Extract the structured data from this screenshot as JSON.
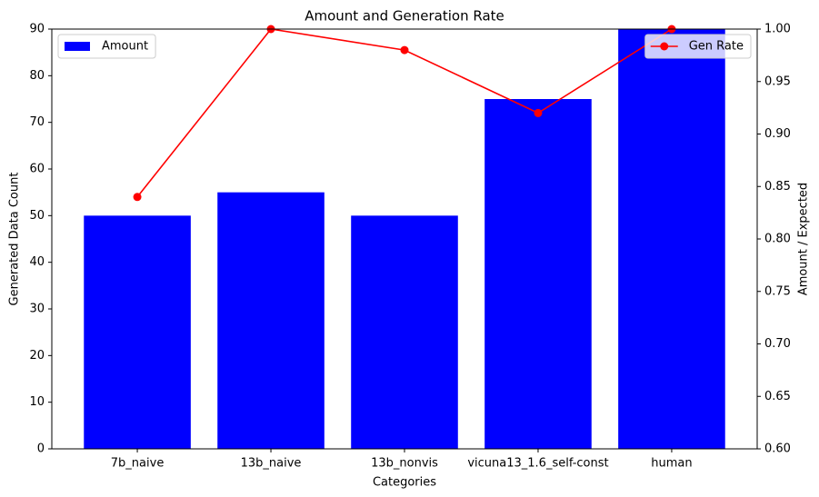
{
  "chart_data": {
    "type": "bar",
    "title": "Amount and Generation Rate",
    "xlabel": "Categories",
    "ylabel": "Generated Data Count",
    "y2label": "Amount / Expected",
    "categories": [
      "7b_naive",
      "13b_naive",
      "13b_nonvis",
      "vicuna13_1.6_self-const",
      "human"
    ],
    "series": [
      {
        "name": "Amount",
        "color": "#0000ff",
        "values": [
          50,
          55,
          50,
          75,
          90
        ],
        "legend_loc": "upper left"
      },
      {
        "name": "Gen Rate",
        "type": "line",
        "axis": "y2",
        "color": "#ff0000",
        "values": [
          0.84,
          1.0,
          0.98,
          0.92,
          1.0
        ],
        "legend_loc": "upper right"
      }
    ],
    "ylim": [
      0,
      90
    ],
    "yticks": [
      0,
      10,
      20,
      30,
      40,
      50,
      60,
      70,
      80,
      90
    ],
    "y2lim": [
      0.6,
      1.0
    ],
    "y2ticks": [
      {
        "value": 0.6,
        "label": "0.60"
      },
      0.65,
      {
        "value": 0.7,
        "label": "0.70"
      },
      0.75,
      {
        "value": 0.8,
        "label": "0.80"
      },
      0.85,
      {
        "value": 0.9,
        "label": "0.90"
      },
      0.95,
      {
        "value": 1.0,
        "label": "1.00"
      }
    ]
  }
}
